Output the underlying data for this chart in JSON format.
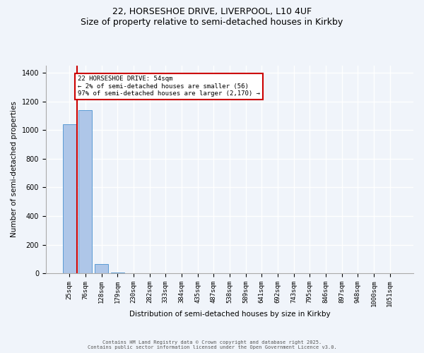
{
  "title_line1": "22, HORSESHOE DRIVE, LIVERPOOL, L10 4UF",
  "title_line2": "Size of property relative to semi-detached houses in Kirkby",
  "xlabel": "Distribution of semi-detached houses by size in Kirkby",
  "ylabel": "Number of semi-detached properties",
  "categories": [
    "25sqm",
    "76sqm",
    "128sqm",
    "179sqm",
    "230sqm",
    "282sqm",
    "333sqm",
    "384sqm",
    "435sqm",
    "487sqm",
    "538sqm",
    "589sqm",
    "641sqm",
    "692sqm",
    "743sqm",
    "795sqm",
    "846sqm",
    "897sqm",
    "948sqm",
    "1000sqm",
    "1051sqm"
  ],
  "values": [
    1040,
    1140,
    65,
    5,
    0,
    0,
    0,
    0,
    0,
    0,
    0,
    0,
    0,
    0,
    0,
    0,
    0,
    0,
    0,
    0,
    0
  ],
  "bar_color": "#aec6e8",
  "bar_edge_color": "#5b9bd5",
  "property_line_x": 0.47,
  "property_size": "54sqm",
  "annotation_title": "22 HORSESHOE DRIVE: 54sqm",
  "annotation_line1": "← 2% of semi-detached houses are smaller (56)",
  "annotation_line2": "97% of semi-detached houses are larger (2,170) →",
  "annotation_box_color": "#ffffff",
  "annotation_box_edge": "#cc0000",
  "vline_color": "#cc0000",
  "ylim": [
    0,
    1450
  ],
  "yticks": [
    0,
    200,
    400,
    600,
    800,
    1000,
    1200,
    1400
  ],
  "bg_color": "#f0f4fa",
  "grid_color": "#ffffff",
  "footer": "Contains HM Land Registry data © Crown copyright and database right 2025.\nContains public sector information licensed under the Open Government Licence v3.0."
}
